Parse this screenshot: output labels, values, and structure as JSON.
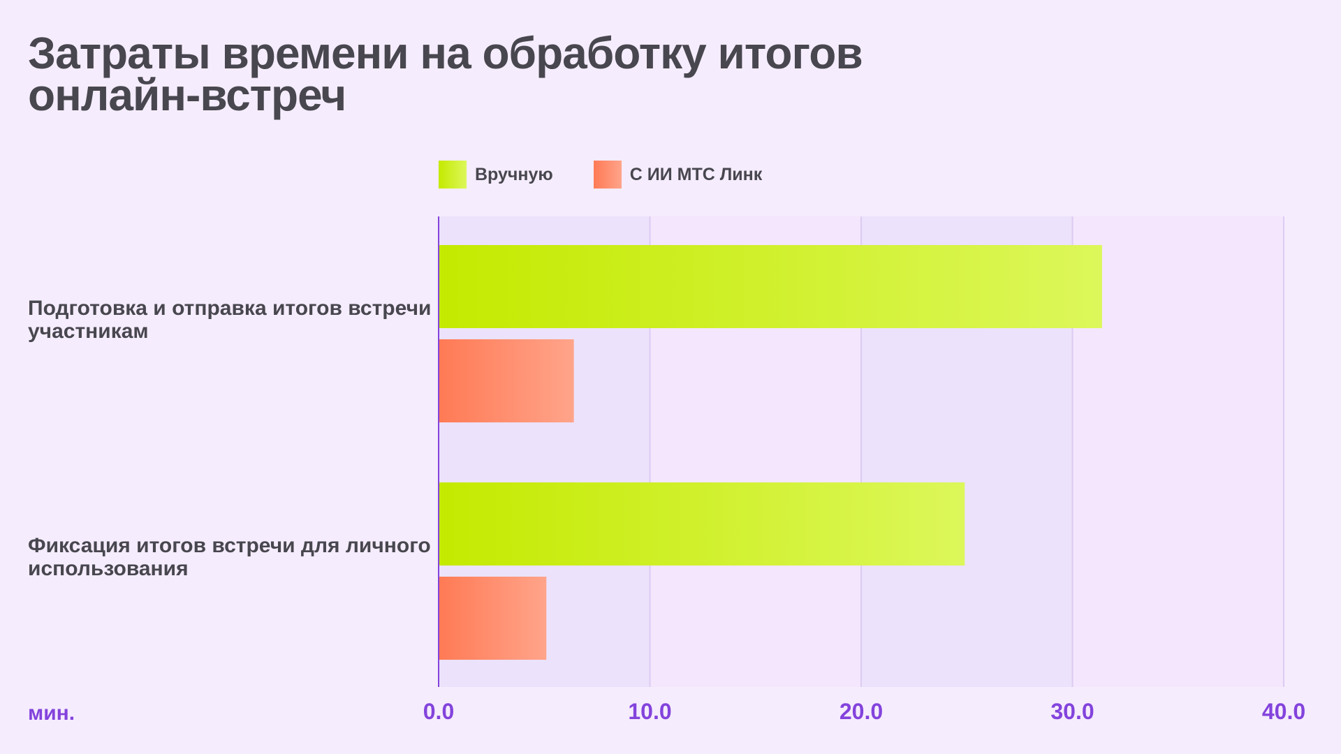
{
  "chart_data": {
    "type": "bar",
    "orientation": "horizontal",
    "title": "Затраты времени на обработку итогов онлайн-встреч",
    "unit_label": "мин.",
    "categories": [
      "Подготовка и отправка итогов встречи участникам",
      "Фиксация итогов встречи для личного использования"
    ],
    "series": [
      {
        "name": "Вручную",
        "values": [
          31.4,
          24.9
        ],
        "color": "#c4ea00",
        "color_end": "#dcf75a"
      },
      {
        "name": "С ИИ МТС Линк",
        "values": [
          6.4,
          5.1
        ],
        "color": "#ff7a55",
        "color_end": "#ffa48a"
      }
    ],
    "xlim": [
      0,
      40
    ],
    "ticks": [
      "0.0",
      "10.0",
      "20.0",
      "30.0",
      "40.0"
    ],
    "grid": true,
    "legend_position": "top"
  }
}
